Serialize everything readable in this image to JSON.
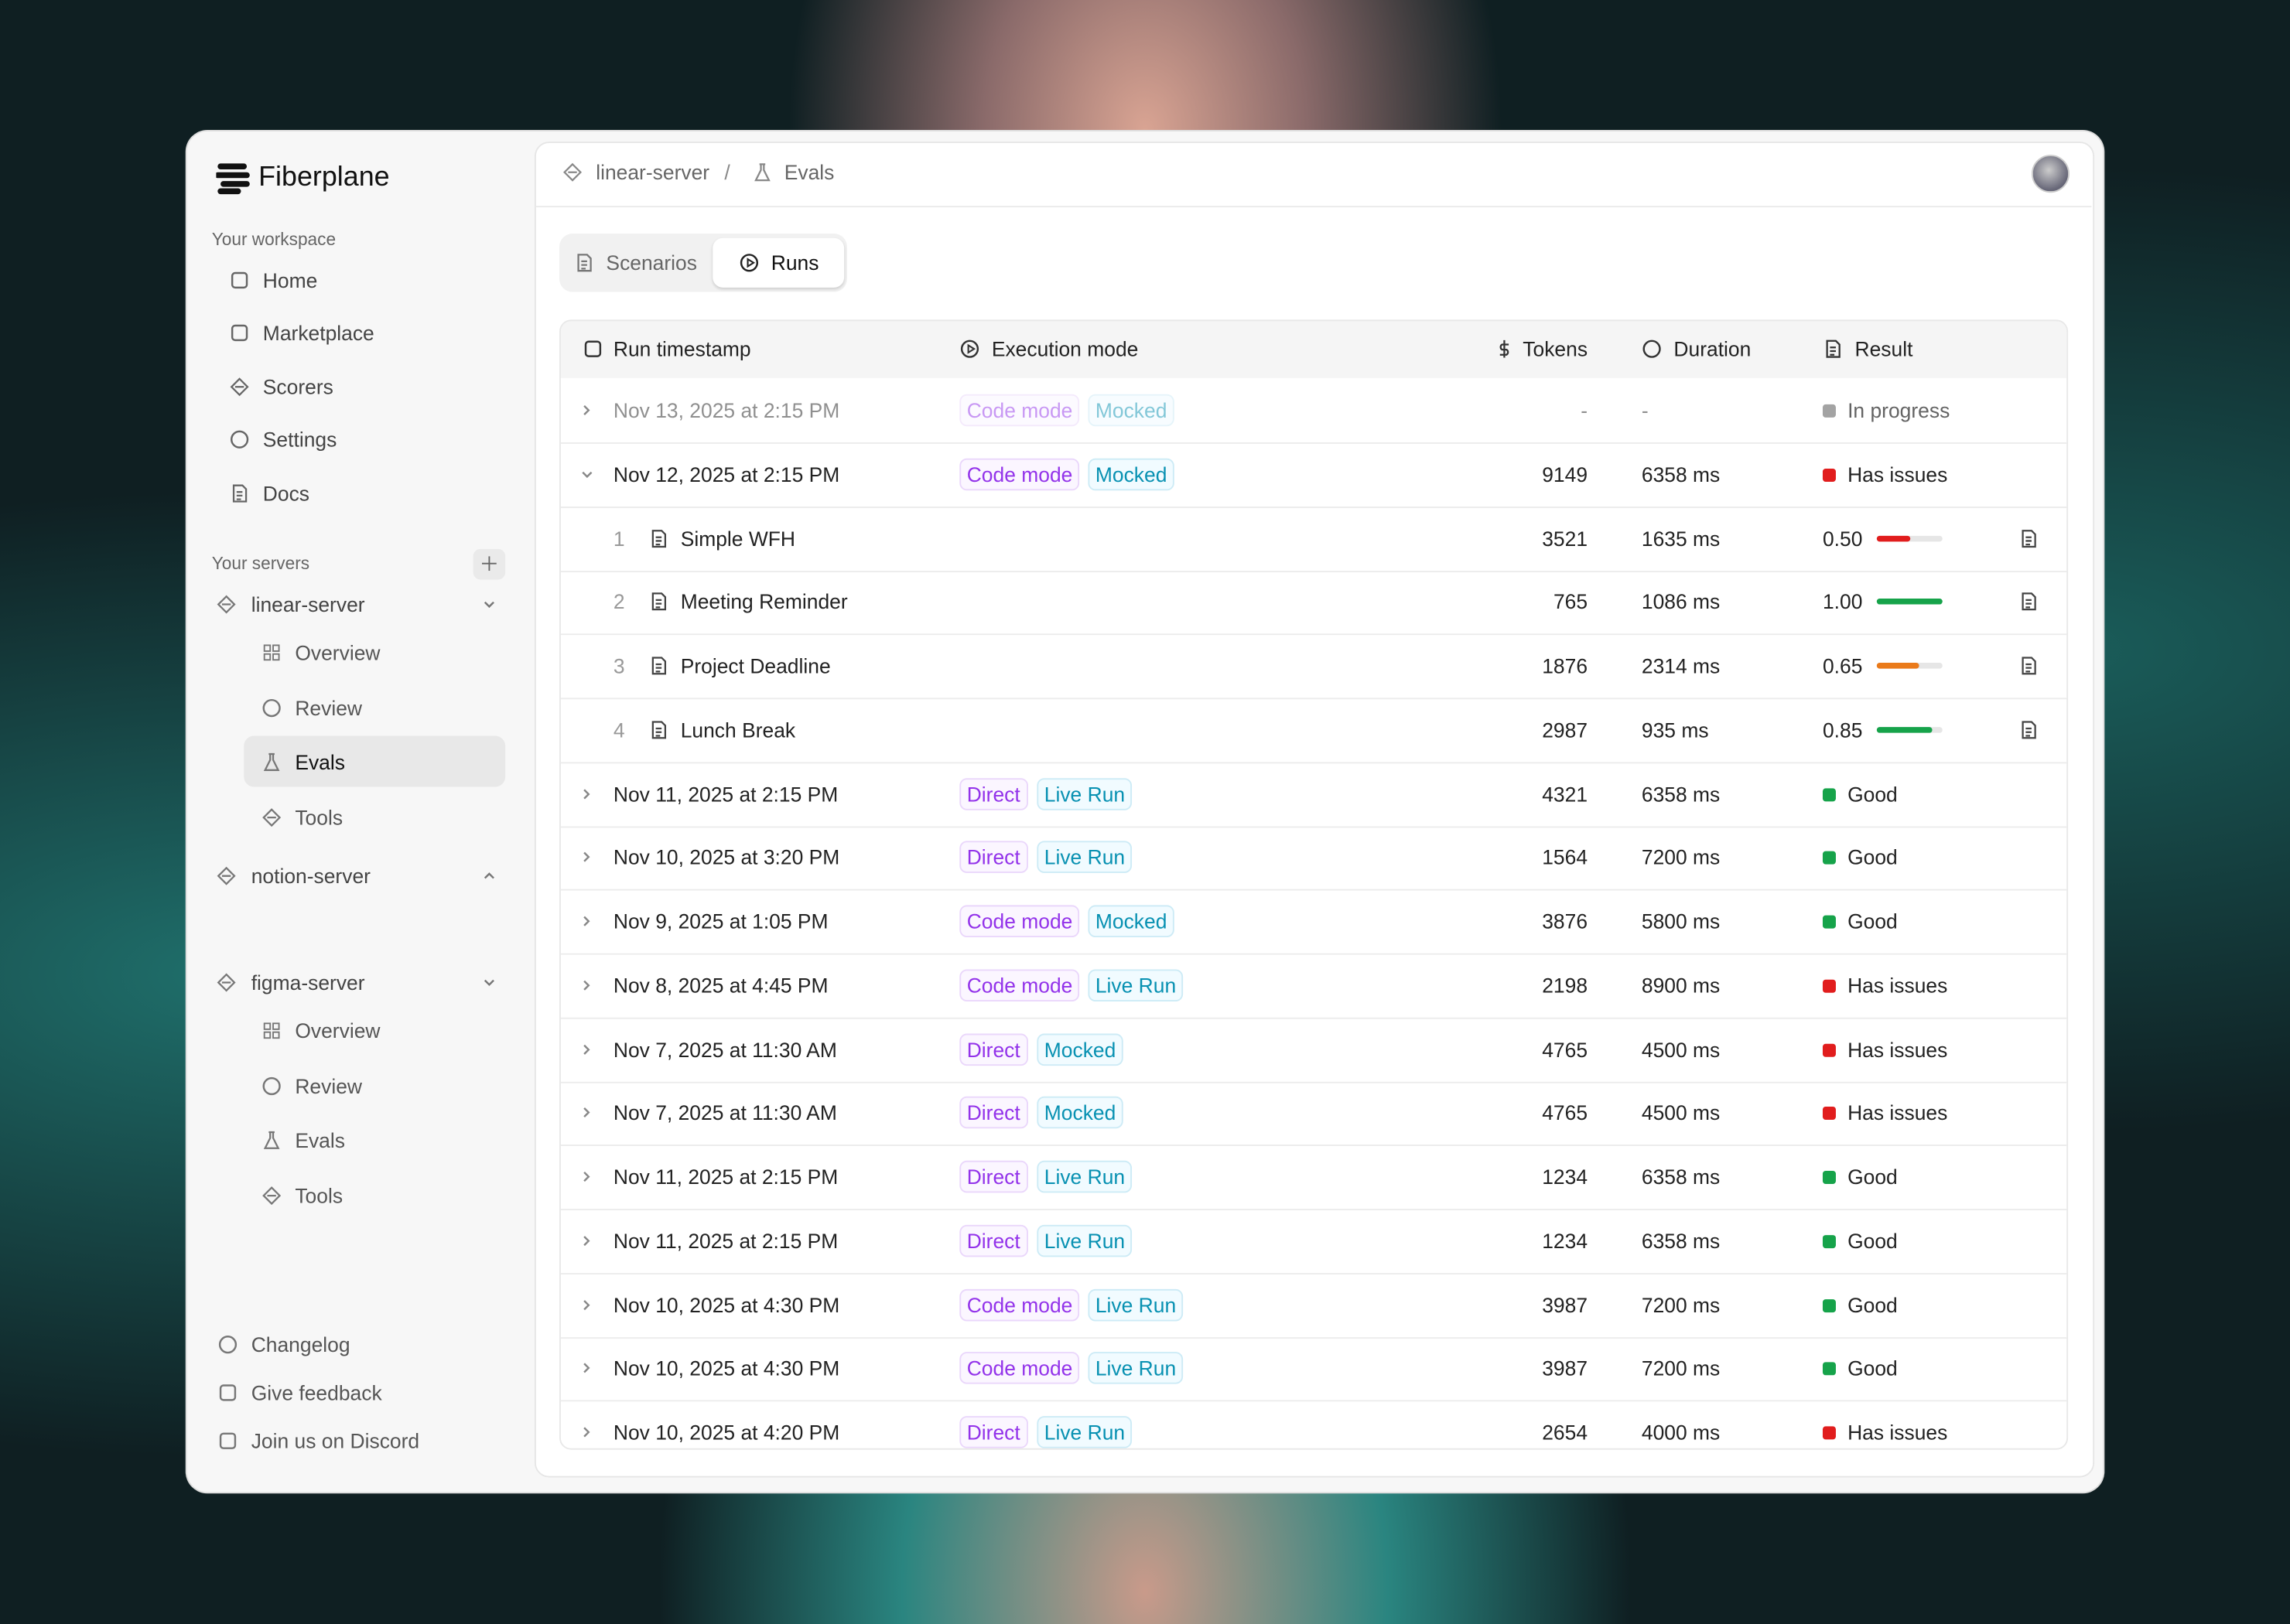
{
  "brand": "Fiberplane",
  "sidebar": {
    "workspace_label": "Your workspace",
    "nav": [
      "Home",
      "Marketplace",
      "Scorers",
      "Settings",
      "Docs"
    ],
    "servers_label": "Your servers",
    "servers": [
      {
        "name": "linear-server",
        "items": [
          "Overview",
          "Review",
          "Evals",
          "Tools"
        ]
      },
      {
        "name": "notion-server",
        "items": []
      },
      {
        "name": "figma-server",
        "items": [
          "Overview",
          "Review",
          "Evals",
          "Tools"
        ]
      }
    ],
    "footer": [
      "Changelog",
      "Give feedback",
      "Join us on Discord"
    ]
  },
  "breadcrumb": [
    "linear-server",
    "Evals"
  ],
  "tabs": [
    "Scenarios",
    "Runs"
  ],
  "table": {
    "columns": [
      "Run timestamp",
      "Execution mode",
      "Tokens",
      "Duration",
      "Result"
    ],
    "rows": [
      {
        "timestamp": "Nov 13, 2025 at 2:15 PM",
        "modes": [
          "Code mode",
          "Mocked"
        ],
        "tokens": "-",
        "duration": "-",
        "result": "In progress",
        "status": "gray"
      },
      {
        "timestamp": "Nov 12, 2025 at 2:15 PM",
        "modes": [
          "Code mode",
          "Mocked"
        ],
        "tokens": "9149",
        "duration": "6358 ms",
        "result": "Has issues",
        "status": "red",
        "children": [
          {
            "index": 1,
            "name": "Simple WFH",
            "tokens": "3521",
            "duration": "1635 ms",
            "score": "0.50"
          },
          {
            "index": 2,
            "name": "Meeting Reminder",
            "tokens": "765",
            "duration": "1086 ms",
            "score": "1.00"
          },
          {
            "index": 3,
            "name": "Project Deadline",
            "tokens": "1876",
            "duration": "2314 ms",
            "score": "0.65"
          },
          {
            "index": 4,
            "name": "Lunch Break",
            "tokens": "2987",
            "duration": "935 ms",
            "score": "0.85"
          }
        ]
      },
      {
        "timestamp": "Nov 11, 2025 at 2:15 PM",
        "modes": [
          "Direct",
          "Live Run"
        ],
        "tokens": "4321",
        "duration": "6358 ms",
        "result": "Good",
        "status": "green"
      },
      {
        "timestamp": "Nov 10, 2025 at 3:20 PM",
        "modes": [
          "Direct",
          "Live Run"
        ],
        "tokens": "1564",
        "duration": "7200 ms",
        "result": "Good",
        "status": "green"
      },
      {
        "timestamp": "Nov 9, 2025 at 1:05 PM",
        "modes": [
          "Code mode",
          "Mocked"
        ],
        "tokens": "3876",
        "duration": "5800 ms",
        "result": "Good",
        "status": "green"
      },
      {
        "timestamp": "Nov 8, 2025 at 4:45 PM",
        "modes": [
          "Code mode",
          "Live Run"
        ],
        "tokens": "2198",
        "duration": "8900 ms",
        "result": "Has issues",
        "status": "red"
      },
      {
        "timestamp": "Nov 7, 2025 at 11:30 AM",
        "modes": [
          "Direct",
          "Mocked"
        ],
        "tokens": "4765",
        "duration": "4500 ms",
        "result": "Has issues",
        "status": "red"
      },
      {
        "timestamp": "Nov 7, 2025 at 11:30 AM",
        "modes": [
          "Direct",
          "Mocked"
        ],
        "tokens": "4765",
        "duration": "4500 ms",
        "result": "Has issues",
        "status": "red"
      },
      {
        "timestamp": "Nov 11, 2025 at 2:15 PM",
        "modes": [
          "Direct",
          "Live Run"
        ],
        "tokens": "1234",
        "duration": "6358 ms",
        "result": "Good",
        "status": "green"
      },
      {
        "timestamp": "Nov 11, 2025 at 2:15 PM",
        "modes": [
          "Direct",
          "Live Run"
        ],
        "tokens": "1234",
        "duration": "6358 ms",
        "result": "Good",
        "status": "green"
      },
      {
        "timestamp": "Nov 10, 2025 at 4:30 PM",
        "modes": [
          "Code mode",
          "Live Run"
        ],
        "tokens": "3987",
        "duration": "7200 ms",
        "result": "Good",
        "status": "green"
      },
      {
        "timestamp": "Nov 10, 2025 at 4:30 PM",
        "modes": [
          "Code mode",
          "Live Run"
        ],
        "tokens": "3987",
        "duration": "7200 ms",
        "result": "Good",
        "status": "green"
      },
      {
        "timestamp": "Nov 10, 2025 at 4:20 PM",
        "modes": [
          "Direct",
          "Live Run"
        ],
        "tokens": "2654",
        "duration": "4000 ms",
        "result": "Has issues",
        "status": "red"
      }
    ]
  }
}
